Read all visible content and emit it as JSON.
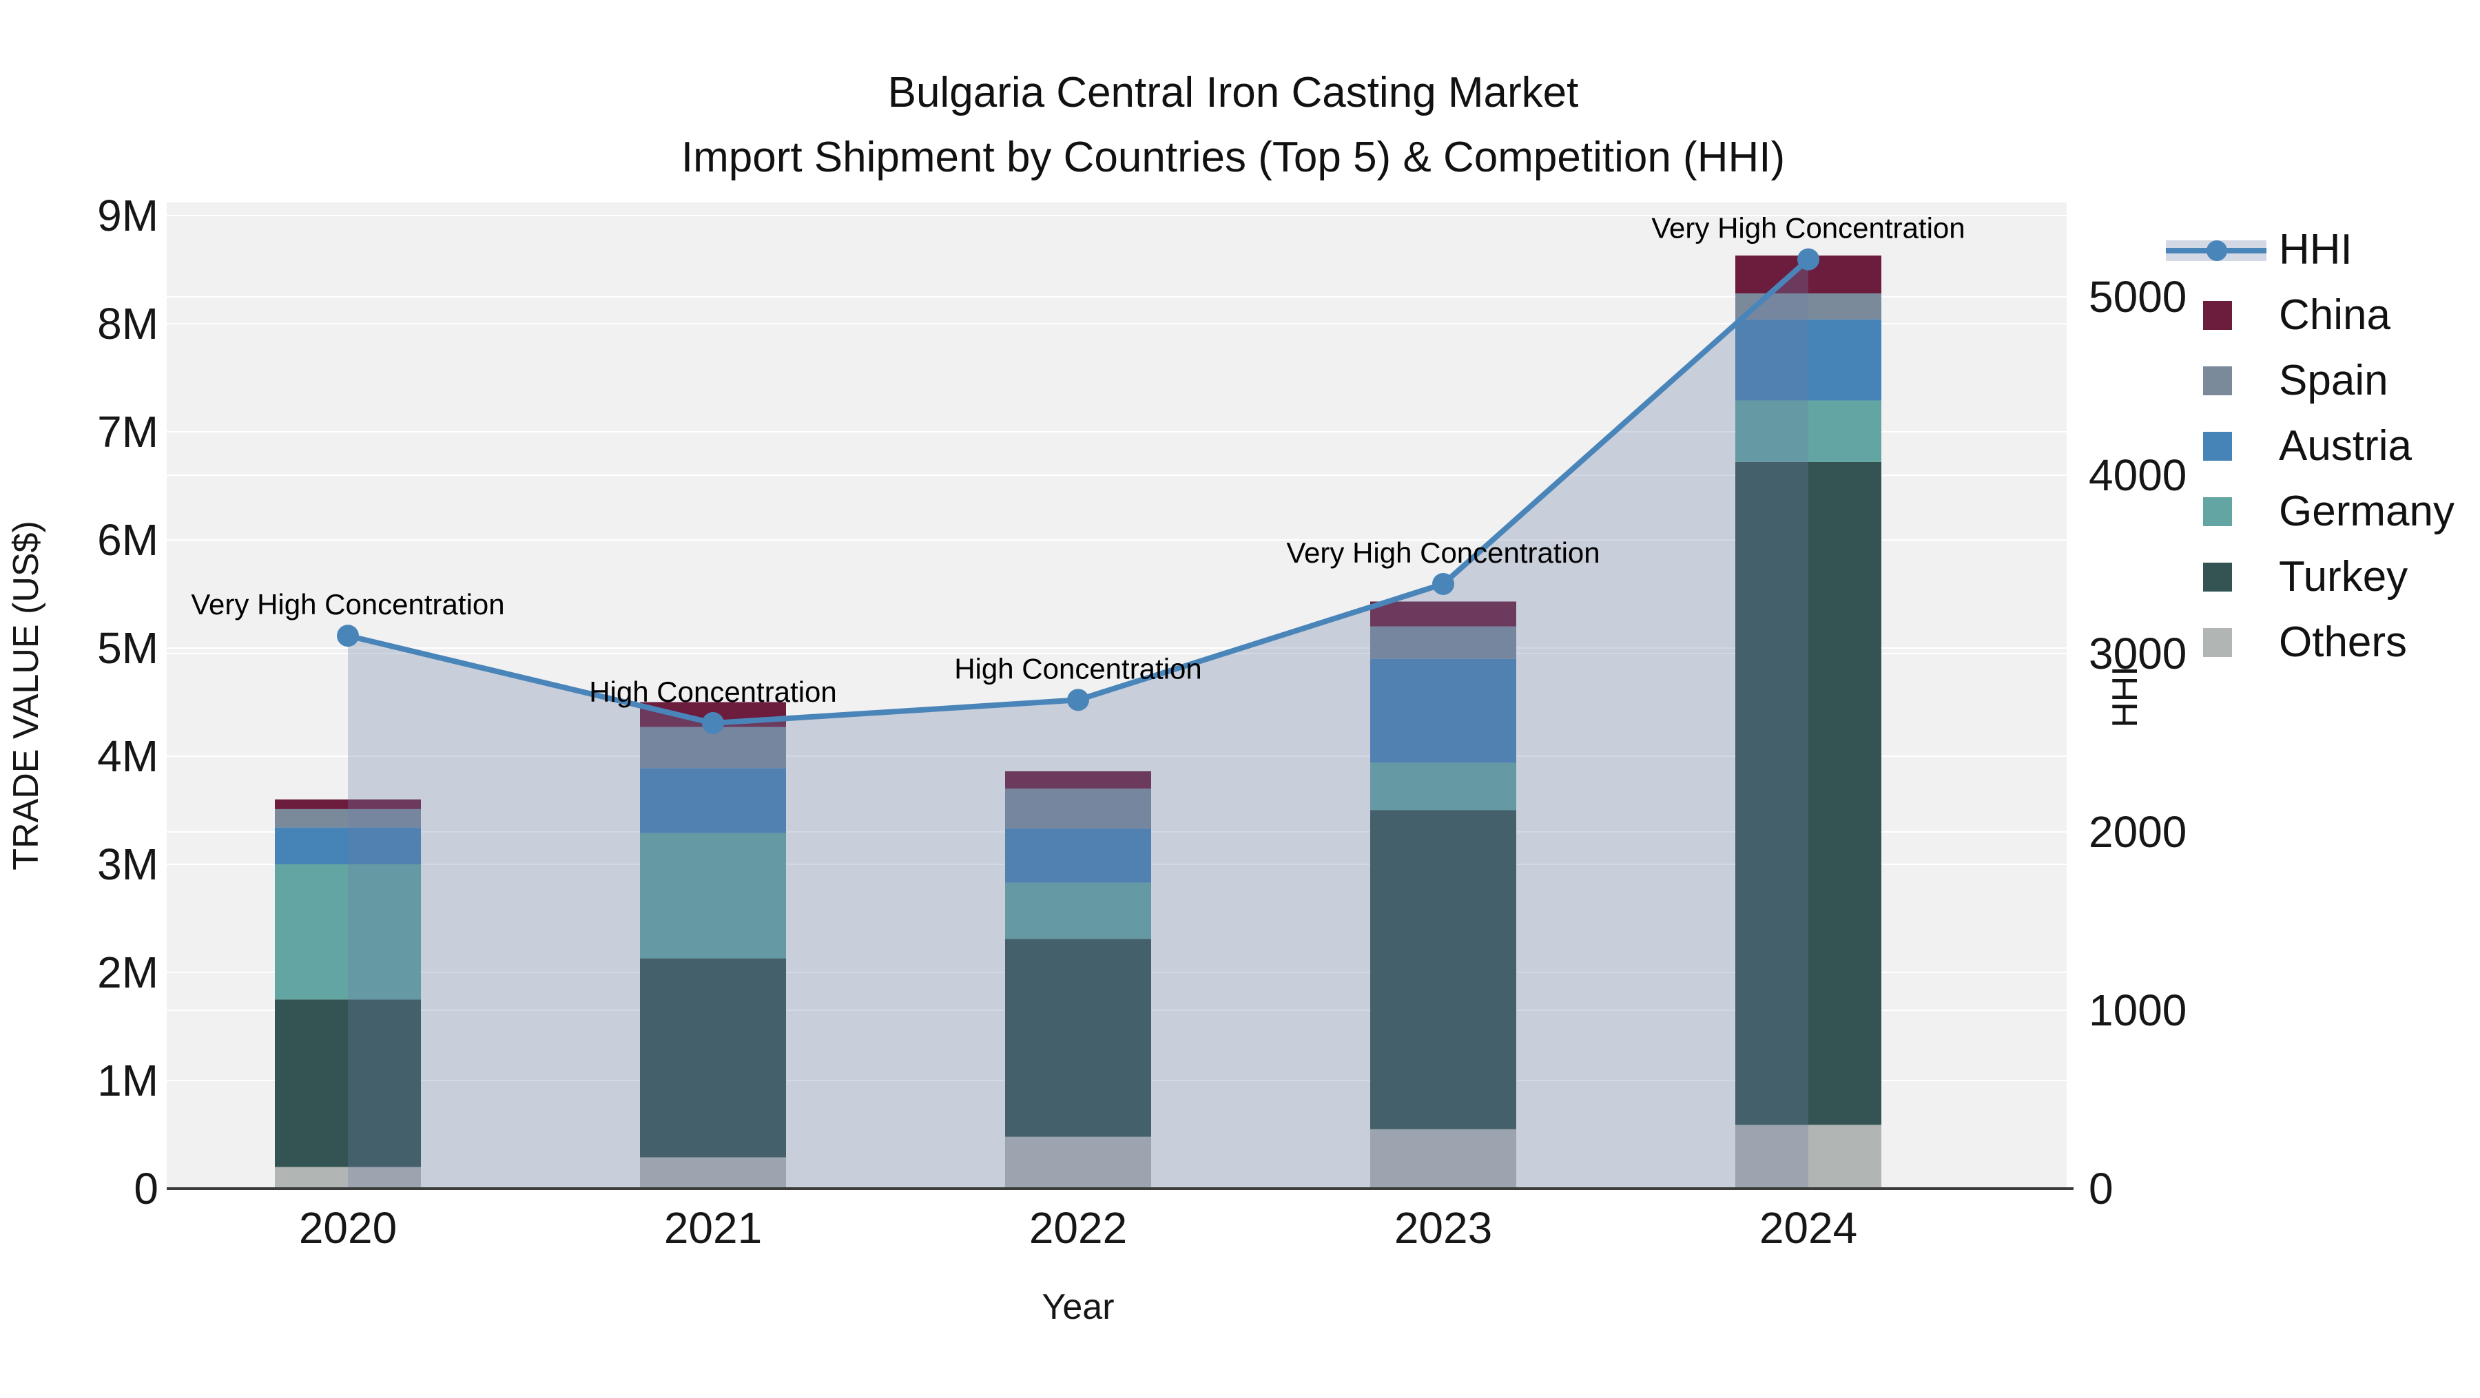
{
  "title": {
    "line1": "Bulgaria Central Iron Casting Market",
    "line2": "Import Shipment by Countries (Top 5) & Competition (HHI)"
  },
  "chart_data": {
    "type": "bar",
    "subtype": "stacked-bars-with-line-overlay",
    "categories": [
      "2020",
      "2021",
      "2022",
      "2023",
      "2024"
    ],
    "x_label": "Year",
    "y_left": {
      "label": "TRADE VALUE (US$)",
      "unit": "millions USD",
      "tick_labels": [
        "0",
        "1M",
        "2M",
        "3M",
        "4M",
        "5M",
        "6M",
        "7M",
        "8M",
        "9M"
      ],
      "ylim": [
        0,
        9
      ]
    },
    "y_right": {
      "label": "HHI",
      "tick_labels": [
        "0",
        "1000",
        "2000",
        "3000",
        "4000",
        "5000"
      ],
      "ylim": [
        0,
        5000
      ]
    },
    "series": [
      {
        "name": "Others",
        "color": "#B1B5B3",
        "values": [
          0.2,
          0.29,
          0.48,
          0.55,
          0.59
        ]
      },
      {
        "name": "Turkey",
        "color": "#335452",
        "values": [
          1.55,
          1.84,
          1.83,
          2.95,
          6.13
        ]
      },
      {
        "name": "Germany",
        "color": "#63A5A2",
        "values": [
          1.25,
          1.16,
          0.52,
          0.44,
          0.57
        ]
      },
      {
        "name": "Austria",
        "color": "#4683B7",
        "values": [
          0.34,
          0.6,
          0.5,
          0.96,
          0.75
        ]
      },
      {
        "name": "Spain",
        "color": "#7A8A9B",
        "values": [
          0.17,
          0.38,
          0.37,
          0.3,
          0.24
        ]
      },
      {
        "name": "China",
        "color": "#6C1D3E",
        "values": [
          0.09,
          0.23,
          0.16,
          0.23,
          0.35
        ]
      }
    ],
    "hhi": {
      "name": "HHI",
      "color": "#4A85BA",
      "area_fill": "rgba(105,126,165,0.30)",
      "values": [
        3100,
        2610,
        2740,
        3390,
        5210
      ]
    },
    "annotations": [
      {
        "year": "2020",
        "text": "Very High Concentration"
      },
      {
        "year": "2021",
        "text": "High Concentration"
      },
      {
        "year": "2022",
        "text": "High Concentration"
      },
      {
        "year": "2023",
        "text": "Very High Concentration"
      },
      {
        "year": "2024",
        "text": "Very High Concentration"
      }
    ],
    "legend_position": "right",
    "grid": true
  },
  "legend": {
    "items": [
      {
        "label": "HHI",
        "type": "line",
        "color": "#4A85BA"
      },
      {
        "label": "China",
        "type": "swatch",
        "color": "#6C1D3E"
      },
      {
        "label": "Spain",
        "type": "swatch",
        "color": "#7A8A9B"
      },
      {
        "label": "Austria",
        "type": "swatch",
        "color": "#4683B7"
      },
      {
        "label": "Germany",
        "type": "swatch",
        "color": "#63A5A2"
      },
      {
        "label": "Turkey",
        "type": "swatch",
        "color": "#335452"
      },
      {
        "label": "Others",
        "type": "swatch",
        "color": "#B1B5B3"
      }
    ]
  },
  "colors": {
    "plot_bg": "#F1F1F1",
    "grid": "#FFFFFF",
    "axis_line": "#3C3C3C",
    "text": "#161616"
  }
}
